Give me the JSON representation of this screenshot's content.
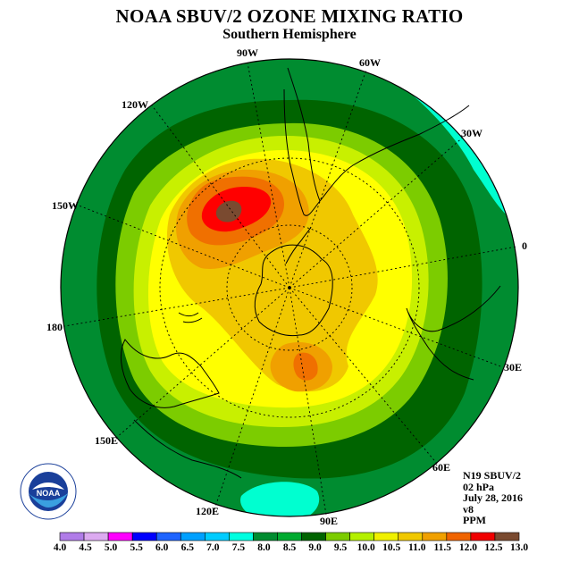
{
  "title": "NOAA SBUV/2 OZONE MIXING RATIO",
  "subtitle": "Southern Hemisphere",
  "longitude_labels": [
    {
      "key": "90W",
      "text": "90W"
    },
    {
      "key": "60W",
      "text": "60W"
    },
    {
      "key": "30W",
      "text": "30W"
    },
    {
      "key": "0",
      "text": "0"
    },
    {
      "key": "30E",
      "text": "30E"
    },
    {
      "key": "60E",
      "text": "60E"
    },
    {
      "key": "90E",
      "text": "90E"
    },
    {
      "key": "120E",
      "text": "120E"
    },
    {
      "key": "150E",
      "text": "150E"
    },
    {
      "key": "180",
      "text": "180"
    },
    {
      "key": "150W",
      "text": "150W"
    },
    {
      "key": "120W",
      "text": "120W"
    }
  ],
  "info": {
    "instrument": "N19 SBUV/2",
    "pressure": "02 hPa",
    "date": "July 28, 2016",
    "version": "v8",
    "units": "PPM"
  },
  "logo": {
    "text": "NOAA",
    "ring_text": "NATIONAL OCEANIC AND ATMOSPHERIC ADMINISTRATION · U.S. DEPARTMENT OF COMMERCE"
  },
  "colorbar": {
    "labels": [
      "4.0",
      "4.5",
      "5.0",
      "5.5",
      "6.0",
      "6.5",
      "7.0",
      "7.5",
      "8.0",
      "8.5",
      "9.0",
      "9.5",
      "10.0",
      "10.5",
      "11.0",
      "11.5",
      "12.0",
      "12.5",
      "13.0"
    ],
    "colors": [
      "#b07ce8",
      "#dcaaf0",
      "#ff00ff",
      "#0000ff",
      "#1e64ff",
      "#00a0ff",
      "#00ccff",
      "#00ffe0",
      "#008c30",
      "#00aa30",
      "#006400",
      "#7ccc00",
      "#b4f000",
      "#f0f000",
      "#f0c800",
      "#f0a000",
      "#f06400",
      "#f00000",
      "#7a4a30"
    ]
  },
  "map_colors": {
    "background": "#008c30",
    "cyan": "#00ffd0",
    "dark_green": "#006400",
    "light_green": "#7ccc00",
    "yellow_green": "#c8f000",
    "yellow": "#ffff00",
    "gold": "#f0c800",
    "orange": "#f0a000",
    "dark_orange": "#f07000",
    "red": "#ff0000",
    "brown": "#7a4a30"
  }
}
